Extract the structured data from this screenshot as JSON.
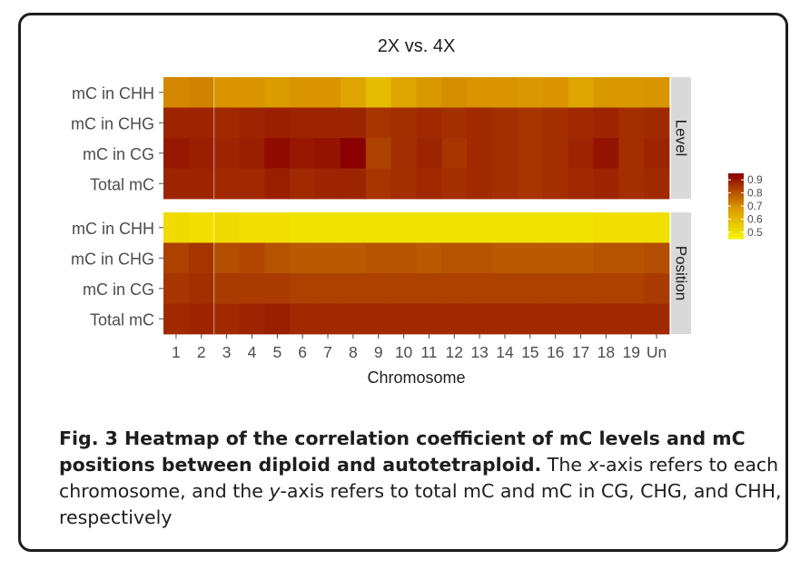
{
  "chart_data": {
    "type": "heatmap",
    "title": "2X vs. 4X",
    "xlabel": "Chromosome",
    "ylabel": "",
    "x": [
      "1",
      "2",
      "3",
      "4",
      "5",
      "6",
      "7",
      "8",
      "9",
      "10",
      "11",
      "12",
      "13",
      "14",
      "15",
      "16",
      "17",
      "18",
      "19",
      "Un"
    ],
    "rows": [
      "mC in CHH",
      "mC in CHG",
      "mC in CG",
      "Total mC"
    ],
    "legend": {
      "ticks": [
        "0.9",
        "0.8",
        "0.7",
        "0.6",
        "0.5"
      ],
      "range": [
        0.45,
        0.95
      ],
      "low_color": "#f7f700",
      "mid_color": "#d99400",
      "high_color": "#8a0000",
      "placement": "right"
    },
    "panels": [
      {
        "label": "Level",
        "values": [
          [
            0.72,
            0.73,
            0.7,
            0.7,
            0.68,
            0.7,
            0.7,
            0.66,
            0.6,
            0.66,
            0.69,
            0.71,
            0.7,
            0.7,
            0.69,
            0.7,
            0.66,
            0.69,
            0.69,
            0.7
          ],
          [
            0.89,
            0.89,
            0.88,
            0.89,
            0.9,
            0.89,
            0.89,
            0.89,
            0.86,
            0.87,
            0.88,
            0.87,
            0.88,
            0.87,
            0.86,
            0.87,
            0.88,
            0.89,
            0.87,
            0.88
          ],
          [
            0.91,
            0.9,
            0.89,
            0.9,
            0.93,
            0.91,
            0.92,
            0.95,
            0.84,
            0.87,
            0.89,
            0.86,
            0.88,
            0.87,
            0.86,
            0.87,
            0.89,
            0.92,
            0.87,
            0.89
          ],
          [
            0.89,
            0.89,
            0.88,
            0.88,
            0.9,
            0.88,
            0.89,
            0.89,
            0.86,
            0.87,
            0.88,
            0.87,
            0.88,
            0.87,
            0.86,
            0.87,
            0.88,
            0.89,
            0.87,
            0.88
          ]
        ]
      },
      {
        "label": "Position",
        "values": [
          [
            0.52,
            0.51,
            0.52,
            0.51,
            0.51,
            0.5,
            0.5,
            0.5,
            0.5,
            0.5,
            0.5,
            0.5,
            0.5,
            0.5,
            0.5,
            0.5,
            0.5,
            0.51,
            0.51,
            0.51
          ],
          [
            0.84,
            0.86,
            0.82,
            0.83,
            0.81,
            0.8,
            0.8,
            0.8,
            0.81,
            0.81,
            0.8,
            0.81,
            0.81,
            0.8,
            0.8,
            0.8,
            0.8,
            0.81,
            0.81,
            0.82
          ],
          [
            0.86,
            0.87,
            0.85,
            0.85,
            0.85,
            0.84,
            0.84,
            0.84,
            0.84,
            0.84,
            0.84,
            0.84,
            0.84,
            0.84,
            0.84,
            0.84,
            0.84,
            0.84,
            0.84,
            0.85
          ],
          [
            0.88,
            0.89,
            0.88,
            0.89,
            0.9,
            0.88,
            0.88,
            0.88,
            0.88,
            0.88,
            0.88,
            0.88,
            0.88,
            0.88,
            0.88,
            0.88,
            0.88,
            0.88,
            0.88,
            0.88
          ]
        ]
      }
    ]
  },
  "caption": {
    "lead": "Fig. 3 Heatmap of the correlation coefficient of mC levels and mC positions between diploid and autotetraploid.",
    "body_1": " The ",
    "x_term": "x",
    "body_2": "-axis refers to each chromosome, and the ",
    "y_term": "y",
    "body_3": "-axis refers to total mC and mC in CG, CHG, and CHH, respectively"
  }
}
